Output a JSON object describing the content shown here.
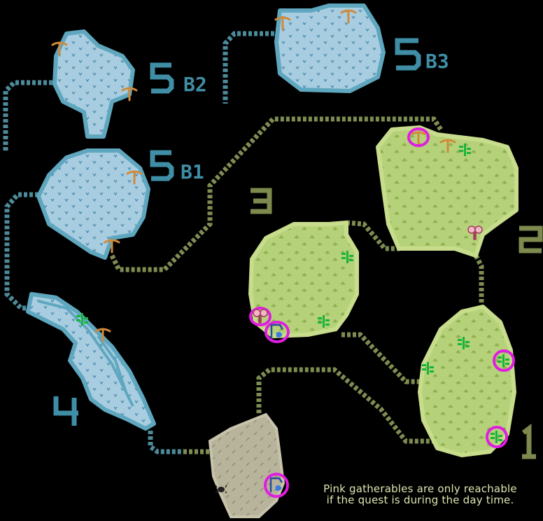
{
  "map": {
    "areas": [
      {
        "id": "1",
        "label": "1",
        "terrain": "forest"
      },
      {
        "id": "2",
        "label": "2",
        "terrain": "forest"
      },
      {
        "id": "3",
        "label": "3",
        "terrain": "forest"
      },
      {
        "id": "4",
        "label": "4",
        "terrain": "cave"
      },
      {
        "id": "5B1",
        "label_num": "5",
        "label_sub": "B1",
        "terrain": "cave"
      },
      {
        "id": "5B2",
        "label_num": "5",
        "label_sub": "B2",
        "terrain": "cave"
      },
      {
        "id": "5B3",
        "label_num": "5",
        "label_sub": "B3",
        "terrain": "cave"
      },
      {
        "id": "camp",
        "terrain": "camp"
      }
    ],
    "legend_note_line1": "Pink gatherables are only reachable",
    "legend_note_line2": "if the quest is during the day time."
  },
  "colors": {
    "background": "#000000",
    "forest_fill": "#b5d27a",
    "forest_border": "#c7dd8c",
    "forest_path": "#7e8c52",
    "cave_fill": "#a9cde0",
    "cave_border": "#5fa7bf",
    "cave_path": "#4d8a9a",
    "camp_fill": "#b8b49b",
    "forest_label": "#7d8a4e",
    "cave_label": "#3f8ea6",
    "highlight": "#e01ee0",
    "herb_icon": "#18b43a",
    "mining_icon": "#d08a3a",
    "fishing_icon": "#3c7ce0",
    "note_text": "#dfe6b0"
  },
  "icons": {
    "mining": "pickaxe-icon",
    "herb": "herb-icon",
    "fishing": "fishing-rod-icon",
    "bone": "bone-icon",
    "bug": "bug-icon"
  }
}
